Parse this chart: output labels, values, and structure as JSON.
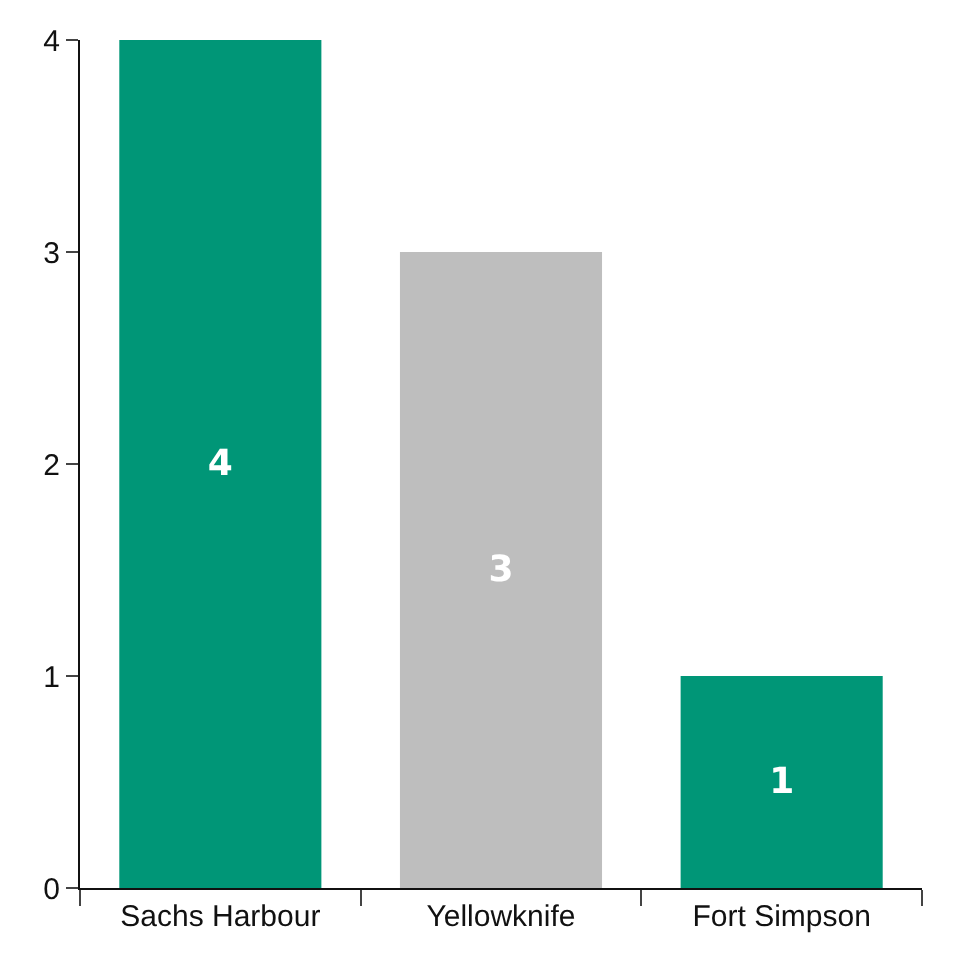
{
  "chart_data": {
    "type": "bar",
    "categories": [
      "Sachs Harbour",
      "Yellowknife",
      "Fort Simpson"
    ],
    "values": [
      4,
      3,
      1
    ],
    "colors": [
      "#009677",
      "#bebebe",
      "#009677"
    ],
    "ylim": [
      0,
      4
    ],
    "yticks": [
      0,
      1,
      2,
      3,
      4
    ],
    "legend": false,
    "data_labels": true
  }
}
